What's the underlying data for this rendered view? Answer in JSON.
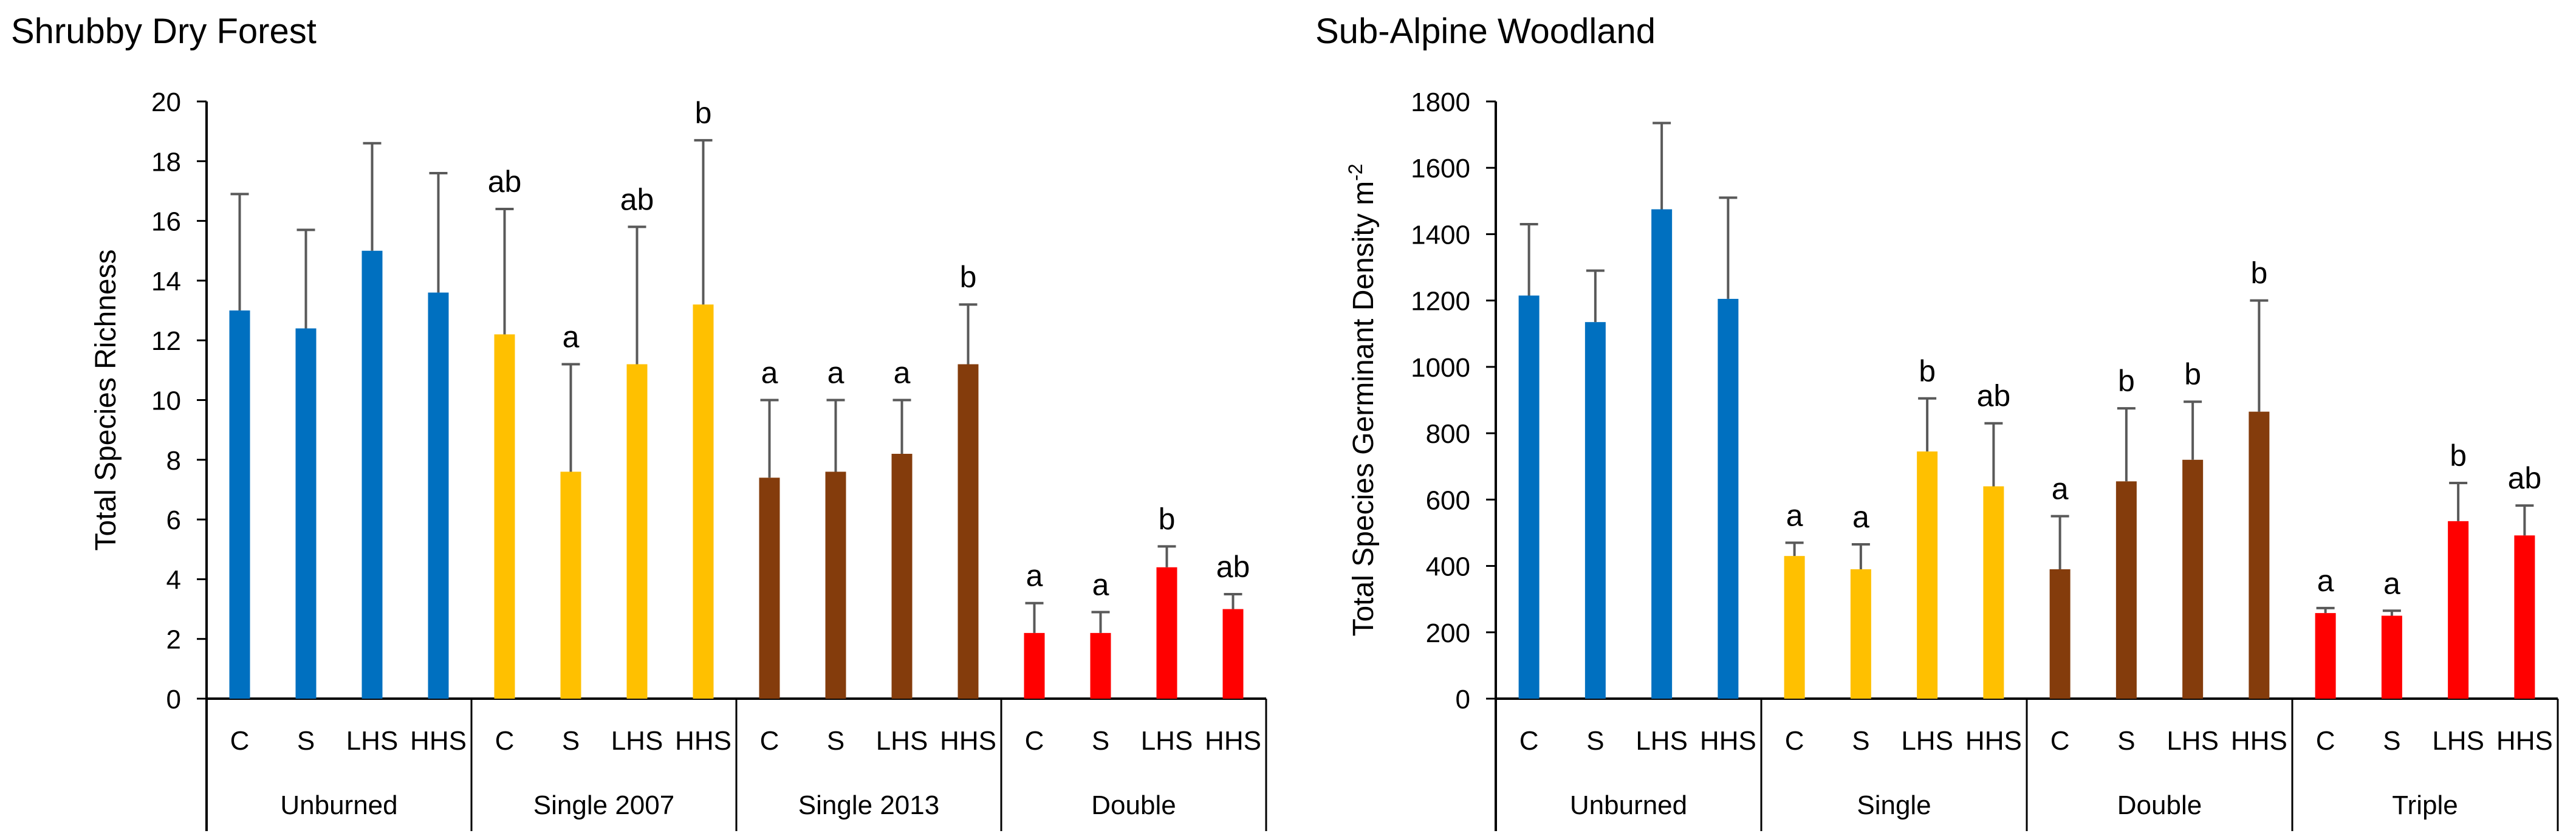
{
  "chart_data": [
    {
      "type": "bar",
      "title": "Shrubby Dry Forest",
      "ylabel": "Total Species Richness",
      "xlabel": "",
      "ylim": [
        0,
        20
      ],
      "yticks": [
        0,
        2,
        4,
        6,
        8,
        10,
        12,
        14,
        16,
        18,
        20
      ],
      "grid": false,
      "groups": [
        {
          "name": "Unburned",
          "color": "#0070C0",
          "categories": [
            "C",
            "S",
            "LHS",
            "HHS"
          ],
          "values": [
            13.0,
            12.4,
            15.0,
            13.6
          ],
          "errors": [
            3.9,
            3.3,
            3.6,
            4.0
          ],
          "letters": [
            "",
            "",
            "",
            ""
          ]
        },
        {
          "name": "Single 2007",
          "color": "#FFC000",
          "categories": [
            "C",
            "S",
            "LHS",
            "HHS"
          ],
          "values": [
            12.2,
            7.6,
            11.2,
            13.2
          ],
          "errors": [
            4.2,
            3.6,
            4.6,
            5.5
          ],
          "letters": [
            "ab",
            "a",
            "ab",
            "b"
          ]
        },
        {
          "name": "Single 2013",
          "color": "#843C0C",
          "categories": [
            "C",
            "S",
            "LHS",
            "HHS"
          ],
          "values": [
            7.4,
            7.6,
            8.2,
            11.2
          ],
          "errors": [
            2.6,
            2.4,
            1.8,
            2.0
          ],
          "letters": [
            "a",
            "a",
            "a",
            "b"
          ]
        },
        {
          "name": "Double",
          "color": "#FF0000",
          "categories": [
            "C",
            "S",
            "LHS",
            "HHS"
          ],
          "values": [
            2.2,
            2.2,
            4.4,
            3.0
          ],
          "errors": [
            1.0,
            0.7,
            0.7,
            0.5
          ],
          "letters": [
            "a",
            "a",
            "b",
            "ab"
          ]
        }
      ]
    },
    {
      "type": "bar",
      "title": "Sub-Alpine Woodland",
      "ylabel": "Total Species Germinant Density m",
      "ylabel_sup": "-2",
      "xlabel": "",
      "ylim": [
        0,
        1800
      ],
      "yticks": [
        0,
        200,
        400,
        600,
        800,
        1000,
        1200,
        1400,
        1600,
        1800
      ],
      "grid": false,
      "groups": [
        {
          "name": "Unburned",
          "color": "#0070C0",
          "categories": [
            "C",
            "S",
            "LHS",
            "HHS"
          ],
          "values": [
            1215,
            1135,
            1475,
            1205
          ],
          "errors": [
            215,
            155,
            260,
            305
          ],
          "letters": [
            "",
            "",
            "",
            ""
          ]
        },
        {
          "name": "Single",
          "color": "#FFC000",
          "categories": [
            "C",
            "S",
            "LHS",
            "HHS"
          ],
          "values": [
            430,
            390,
            745,
            640
          ],
          "errors": [
            40,
            75,
            160,
            190
          ],
          "letters": [
            "a",
            "a",
            "b",
            "ab"
          ]
        },
        {
          "name": "Double",
          "color": "#843C0C",
          "categories": [
            "C",
            "S",
            "LHS",
            "HHS"
          ],
          "values": [
            390,
            655,
            720,
            865
          ],
          "errors": [
            160,
            220,
            175,
            335
          ],
          "letters": [
            "a",
            "b",
            "b",
            "b"
          ]
        },
        {
          "name": "Triple",
          "color": "#FF0000",
          "categories": [
            "C",
            "S",
            "LHS",
            "HHS"
          ],
          "values": [
            258,
            250,
            535,
            492
          ],
          "errors": [
            15,
            15,
            115,
            90
          ],
          "letters": [
            "a",
            "a",
            "b",
            "ab"
          ]
        }
      ]
    }
  ]
}
